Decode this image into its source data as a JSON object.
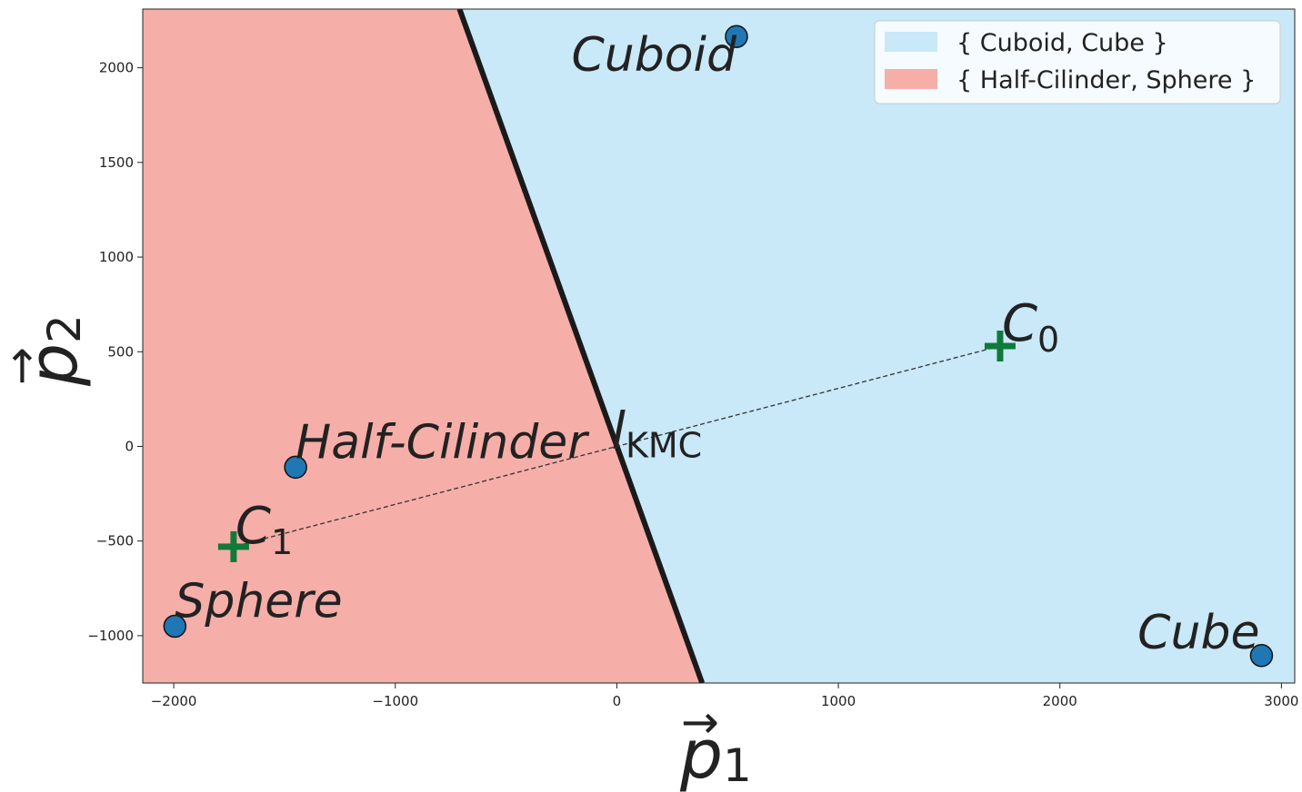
{
  "chart_data": {
    "type": "scatter",
    "xlim": [
      -2140,
      3060
    ],
    "ylim": [
      -1250,
      2310
    ],
    "x_ticks": [
      -2000,
      -1000,
      0,
      1000,
      2000,
      3000
    ],
    "y_ticks": [
      -1000,
      -500,
      0,
      500,
      1000,
      1500,
      2000
    ],
    "x_tick_labels": [
      "−2000",
      "−1000",
      "0",
      "1000",
      "2000",
      "3000"
    ],
    "y_tick_labels": [
      "−1000",
      "−500",
      "0",
      "500",
      "1000",
      "1500",
      "2000"
    ],
    "xlabel": {
      "main": "p",
      "sub": "1",
      "arrow": "→"
    },
    "ylabel": {
      "main": "p",
      "sub": "2",
      "arrow": "→"
    },
    "grid": false,
    "points": [
      {
        "label": "Cuboid",
        "x": 540,
        "y": 2165
      },
      {
        "label": "Half-Cilinder",
        "x": -1450,
        "y": -110
      },
      {
        "label": "Sphere",
        "x": -1995,
        "y": -950
      },
      {
        "label": "Cube",
        "x": 2910,
        "y": -1105
      }
    ],
    "centroids": [
      {
        "label": "C",
        "sub": "0",
        "x": 1730,
        "y": 530
      },
      {
        "label": "C",
        "sub": "1",
        "x": -1730,
        "y": -530
      }
    ],
    "boundary": {
      "label": "l",
      "sub": "KMC",
      "x1": -710,
      "y1": 2310,
      "x2": 385,
      "y2": -1250
    },
    "regions": [
      {
        "name": "{ Cuboid, Cube }",
        "color": "#c9e8f8"
      },
      {
        "name": "{ Half-Cilinder, Sphere }",
        "color": "#f6aea9"
      }
    ],
    "legend_position": "top-right",
    "colors": {
      "point": "#1f77b4",
      "centroid": "#107a3a",
      "boundary": "#1a1a1a"
    }
  }
}
